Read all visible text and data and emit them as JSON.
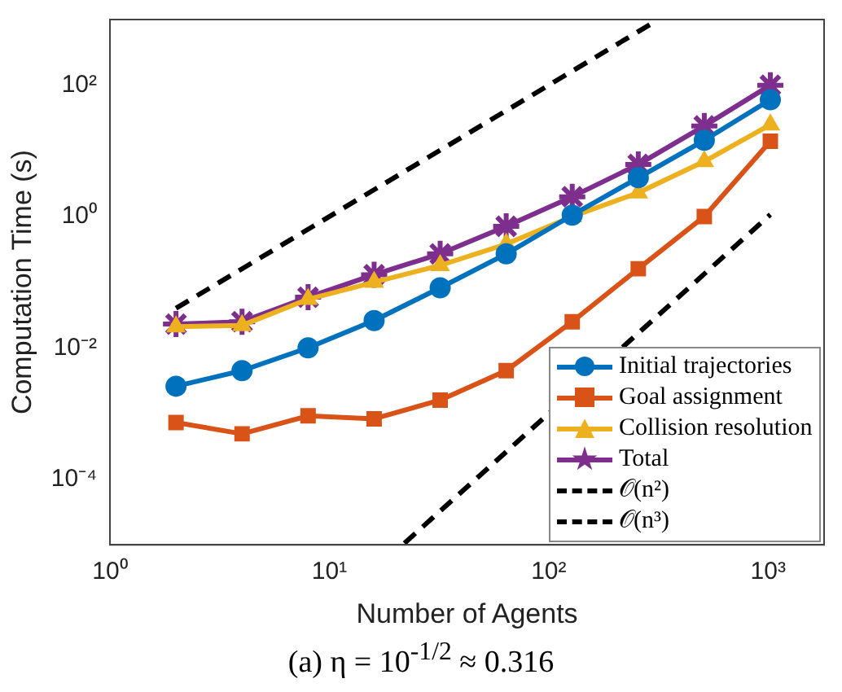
{
  "chart_data": {
    "type": "line",
    "xlabel": "Number of Agents",
    "ylabel": "Computation Time (s)",
    "x": [
      2,
      4,
      8,
      16,
      32,
      64,
      128,
      256,
      512,
      1024
    ],
    "series": [
      {
        "name": "Initial trajectories",
        "color": "#0072bd",
        "marker": "circle",
        "values": [
          0.0026,
          0.0045,
          0.01,
          0.026,
          0.082,
          0.27,
          1.05,
          3.9,
          14.5,
          60
        ]
      },
      {
        "name": "Goal assignment",
        "color": "#d95319",
        "marker": "square",
        "values": [
          0.00073,
          0.00049,
          0.00092,
          0.00083,
          0.0016,
          0.0045,
          0.025,
          0.16,
          1.0,
          14
        ]
      },
      {
        "name": "Collision resolution",
        "color": "#edb120",
        "marker": "triangle",
        "values": [
          0.021,
          0.022,
          0.055,
          0.1,
          0.18,
          0.38,
          1.0,
          2.3,
          6.9,
          25
        ]
      },
      {
        "name": "Total",
        "color": "#7e2f8e",
        "marker": "cross",
        "values": [
          0.023,
          0.025,
          0.059,
          0.13,
          0.27,
          0.71,
          2.0,
          6.2,
          24,
          100
        ]
      },
      {
        "name": "𝒪(n²)",
        "color": "#000000",
        "marker": "none",
        "line_style": "dashed",
        "x": [
          2,
          300
        ],
        "values": [
          0.04,
          900
        ]
      },
      {
        "name": "𝒪(n³)",
        "color": "#000000",
        "marker": "none",
        "line_style": "dashed",
        "x": [
          22,
          1024
        ],
        "values": [
          1.06e-05,
          1.07
        ]
      }
    ],
    "log": "xy",
    "xlim": [
      1,
      1800
    ],
    "ylim": [
      1e-05,
      1000
    ],
    "xticks": [
      {
        "value": 1,
        "label": "10⁰"
      },
      {
        "value": 10,
        "label": "10¹"
      },
      {
        "value": 100,
        "label": "10²"
      },
      {
        "value": 1000,
        "label": "10³"
      }
    ],
    "yticks": [
      {
        "value": 0.0001,
        "label": "10⁻⁴"
      },
      {
        "value": 0.01,
        "label": "10⁻²"
      },
      {
        "value": 1,
        "label": "10⁰"
      },
      {
        "value": 100,
        "label": "10²"
      }
    ],
    "grid": false,
    "legend": "bottom right",
    "annotations": [
      "(a) η = 10$^{-1/2}$ ≈ 0.316"
    ]
  }
}
